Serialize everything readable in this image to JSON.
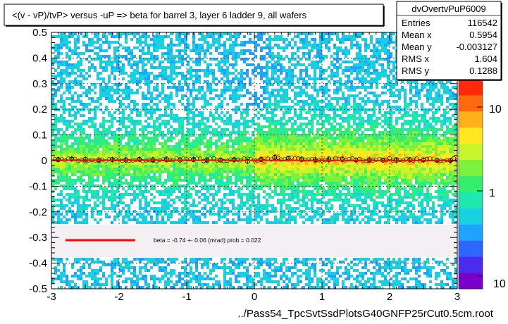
{
  "chart_data": {
    "type": "heatmap",
    "title": "<(v - vP)/tvP> versus  -uP => beta for barrel 3, layer 6 ladder 9, all wafers",
    "xlabel": "../Pass54_TpcSvtSsdPlotsG40GNFP25rCut0.5cm.root",
    "ylabel": "",
    "xlim": [
      -3,
      3
    ],
    "ylim": [
      -0.5,
      0.5
    ],
    "x_ticks": [
      "-3",
      "-2",
      "-1",
      "0",
      "1",
      "2",
      "3"
    ],
    "y_ticks": [
      "-0.5",
      "-0.4",
      "-0.3",
      "-0.2",
      "-0.1",
      "0",
      "0.1",
      "0.2",
      "0.3",
      "0.4",
      "0.5"
    ],
    "z_scale": "log",
    "z_ticks": [
      "1",
      "10"
    ],
    "z_tick_partial": "10",
    "grid": true,
    "stats": {
      "name": "dvOvertvPuP6009",
      "rows": [
        {
          "label": "Entries",
          "value": "116542"
        },
        {
          "label": "Mean x",
          "value": "0.5954"
        },
        {
          "label": "Mean y",
          "value": "-0.003127"
        },
        {
          "label": "RMS x",
          "value": "1.604"
        },
        {
          "label": "RMS y",
          "value": "0.1288"
        }
      ]
    },
    "fit_legend": {
      "text": "beta =    -0.74 +-  0.06 (mrad) prob = 0.022",
      "line_color": "#ff0000"
    },
    "profile": {
      "x": [
        -2.9,
        -2.7,
        -2.5,
        -2.3,
        -2.1,
        -1.9,
        -1.7,
        -1.5,
        -1.3,
        -1.1,
        -0.9,
        -0.7,
        -0.5,
        -0.3,
        -0.1,
        0.1,
        0.3,
        0.5,
        0.7,
        0.9,
        1.1,
        1.3,
        1.5,
        1.7,
        1.9,
        2.1,
        2.3,
        2.5,
        2.7,
        2.9
      ],
      "y": [
        0.004,
        0.006,
        0.005,
        0.003,
        0.004,
        0.002,
        0.005,
        0.004,
        0.003,
        0.002,
        0.004,
        0.003,
        0.002,
        0.004,
        -0.003,
        0.005,
        0.012,
        0.008,
        0.006,
        0.004,
        0.003,
        0.004,
        0.002,
        0.003,
        0.002,
        0.001,
        0.003,
        0.002,
        0.001,
        0.0
      ]
    },
    "fit_line": {
      "x": [
        -3,
        3
      ],
      "y": [
        0.002,
        0.0
      ]
    },
    "colors": {
      "frame": "#000000",
      "legend_band": "#f4eff2",
      "fit": "#ff0000",
      "palette": [
        "#7a00cc",
        "#4a2cf0",
        "#2f66ff",
        "#1ea4ff",
        "#18d0e0",
        "#1ee8b0",
        "#35ee6e",
        "#7cf23c",
        "#c8f42a",
        "#ffe81e",
        "#ffb018",
        "#ff6a10",
        "#ff2a0a"
      ]
    }
  }
}
